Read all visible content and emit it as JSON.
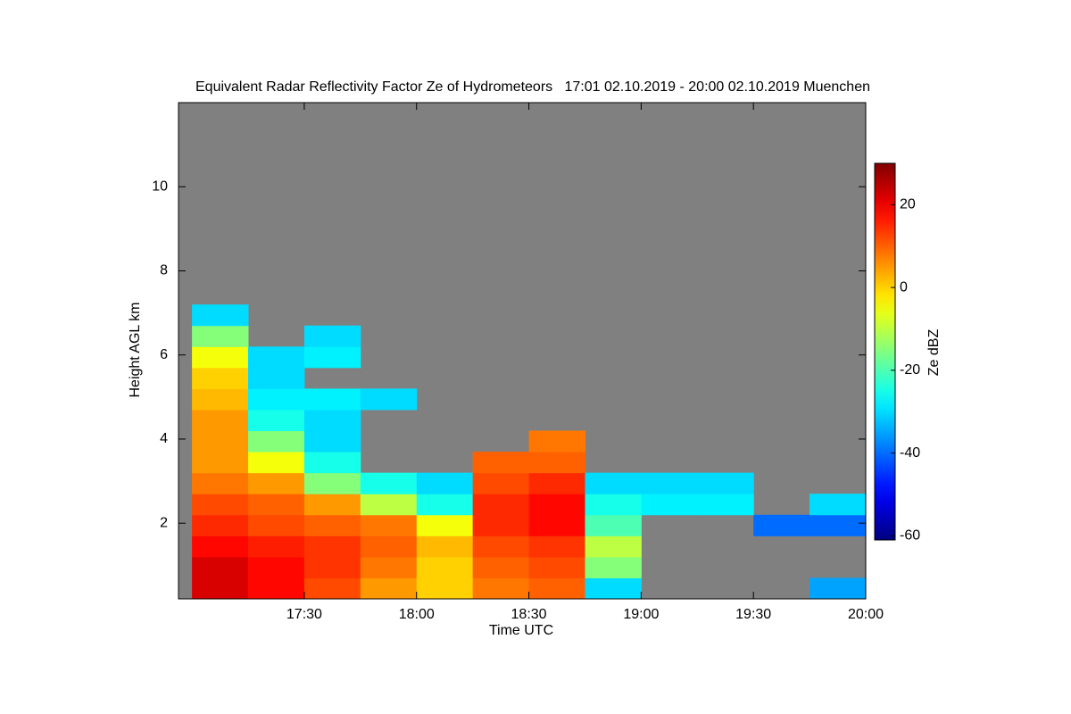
{
  "chart_data": {
    "type": "heatmap",
    "title": "Equivalent Radar Reflectivity Factor Ze of Hydrometeors   17:01 02.10.2019 - 20:00 02.10.2019 Muenchen",
    "xlabel": "Time UTC",
    "ylabel": "Height AGL km",
    "colorbar_label": "Ze dBZ",
    "colormap": "jet",
    "background": "#808080",
    "xlim": [
      16.94,
      20.0
    ],
    "xticks": [
      {
        "value": 17.5,
        "label": "17:30"
      },
      {
        "value": 18.0,
        "label": "18:00"
      },
      {
        "value": 18.5,
        "label": "18:30"
      },
      {
        "value": 19.0,
        "label": "19:00"
      },
      {
        "value": 19.5,
        "label": "19:30"
      },
      {
        "value": 20.0,
        "label": "20:00"
      }
    ],
    "ylim": [
      0.2,
      12
    ],
    "yticks": [
      2,
      4,
      6,
      8,
      10
    ],
    "clim": [
      -61,
      30
    ],
    "cticks": [
      -60,
      -40,
      -20,
      0,
      20
    ],
    "x_edges": [
      17.0,
      17.25,
      17.5,
      17.75,
      18.0,
      18.25,
      18.5,
      18.75,
      19.0,
      19.25,
      19.5,
      19.75,
      20.0
    ],
    "y_edges": [
      0.2,
      0.7,
      1.2,
      1.7,
      2.2,
      2.7,
      3.2,
      3.7,
      4.2,
      4.7,
      5.2,
      5.7,
      6.2,
      6.7,
      7.2
    ],
    "z": [
      [
        22,
        18,
        12,
        5,
        0,
        8,
        10,
        -30,
        null,
        null,
        null,
        -35
      ],
      [
        22,
        18,
        14,
        8,
        0,
        10,
        12,
        -15,
        null,
        null,
        null,
        null
      ],
      [
        18,
        16,
        14,
        10,
        2,
        12,
        14,
        -10,
        null,
        null,
        null,
        null
      ],
      [
        15,
        12,
        10,
        8,
        -5,
        15,
        18,
        -20,
        null,
        null,
        -40,
        -40
      ],
      [
        12,
        10,
        5,
        -10,
        -25,
        15,
        18,
        -25,
        -28,
        -28,
        null,
        -30
      ],
      [
        8,
        5,
        -15,
        -25,
        -30,
        12,
        15,
        -30,
        -30,
        -30,
        null,
        null
      ],
      [
        5,
        -5,
        -25,
        null,
        null,
        10,
        10,
        null,
        null,
        null,
        null,
        null
      ],
      [
        5,
        -15,
        -30,
        null,
        null,
        null,
        8,
        null,
        null,
        null,
        null,
        null
      ],
      [
        5,
        -25,
        -30,
        null,
        null,
        null,
        null,
        null,
        null,
        null,
        null,
        null
      ],
      [
        2,
        -28,
        -28,
        -30,
        null,
        null,
        null,
        null,
        null,
        null,
        null,
        null
      ],
      [
        0,
        -30,
        null,
        null,
        null,
        null,
        null,
        null,
        null,
        null,
        null,
        null
      ],
      [
        -5,
        -30,
        -28,
        null,
        null,
        null,
        null,
        null,
        null,
        null,
        null,
        null
      ],
      [
        -15,
        null,
        -30,
        null,
        null,
        null,
        null,
        null,
        null,
        null,
        null,
        null
      ],
      [
        -30,
        null,
        null,
        null,
        null,
        null,
        null,
        null,
        null,
        null,
        null,
        null
      ]
    ]
  }
}
